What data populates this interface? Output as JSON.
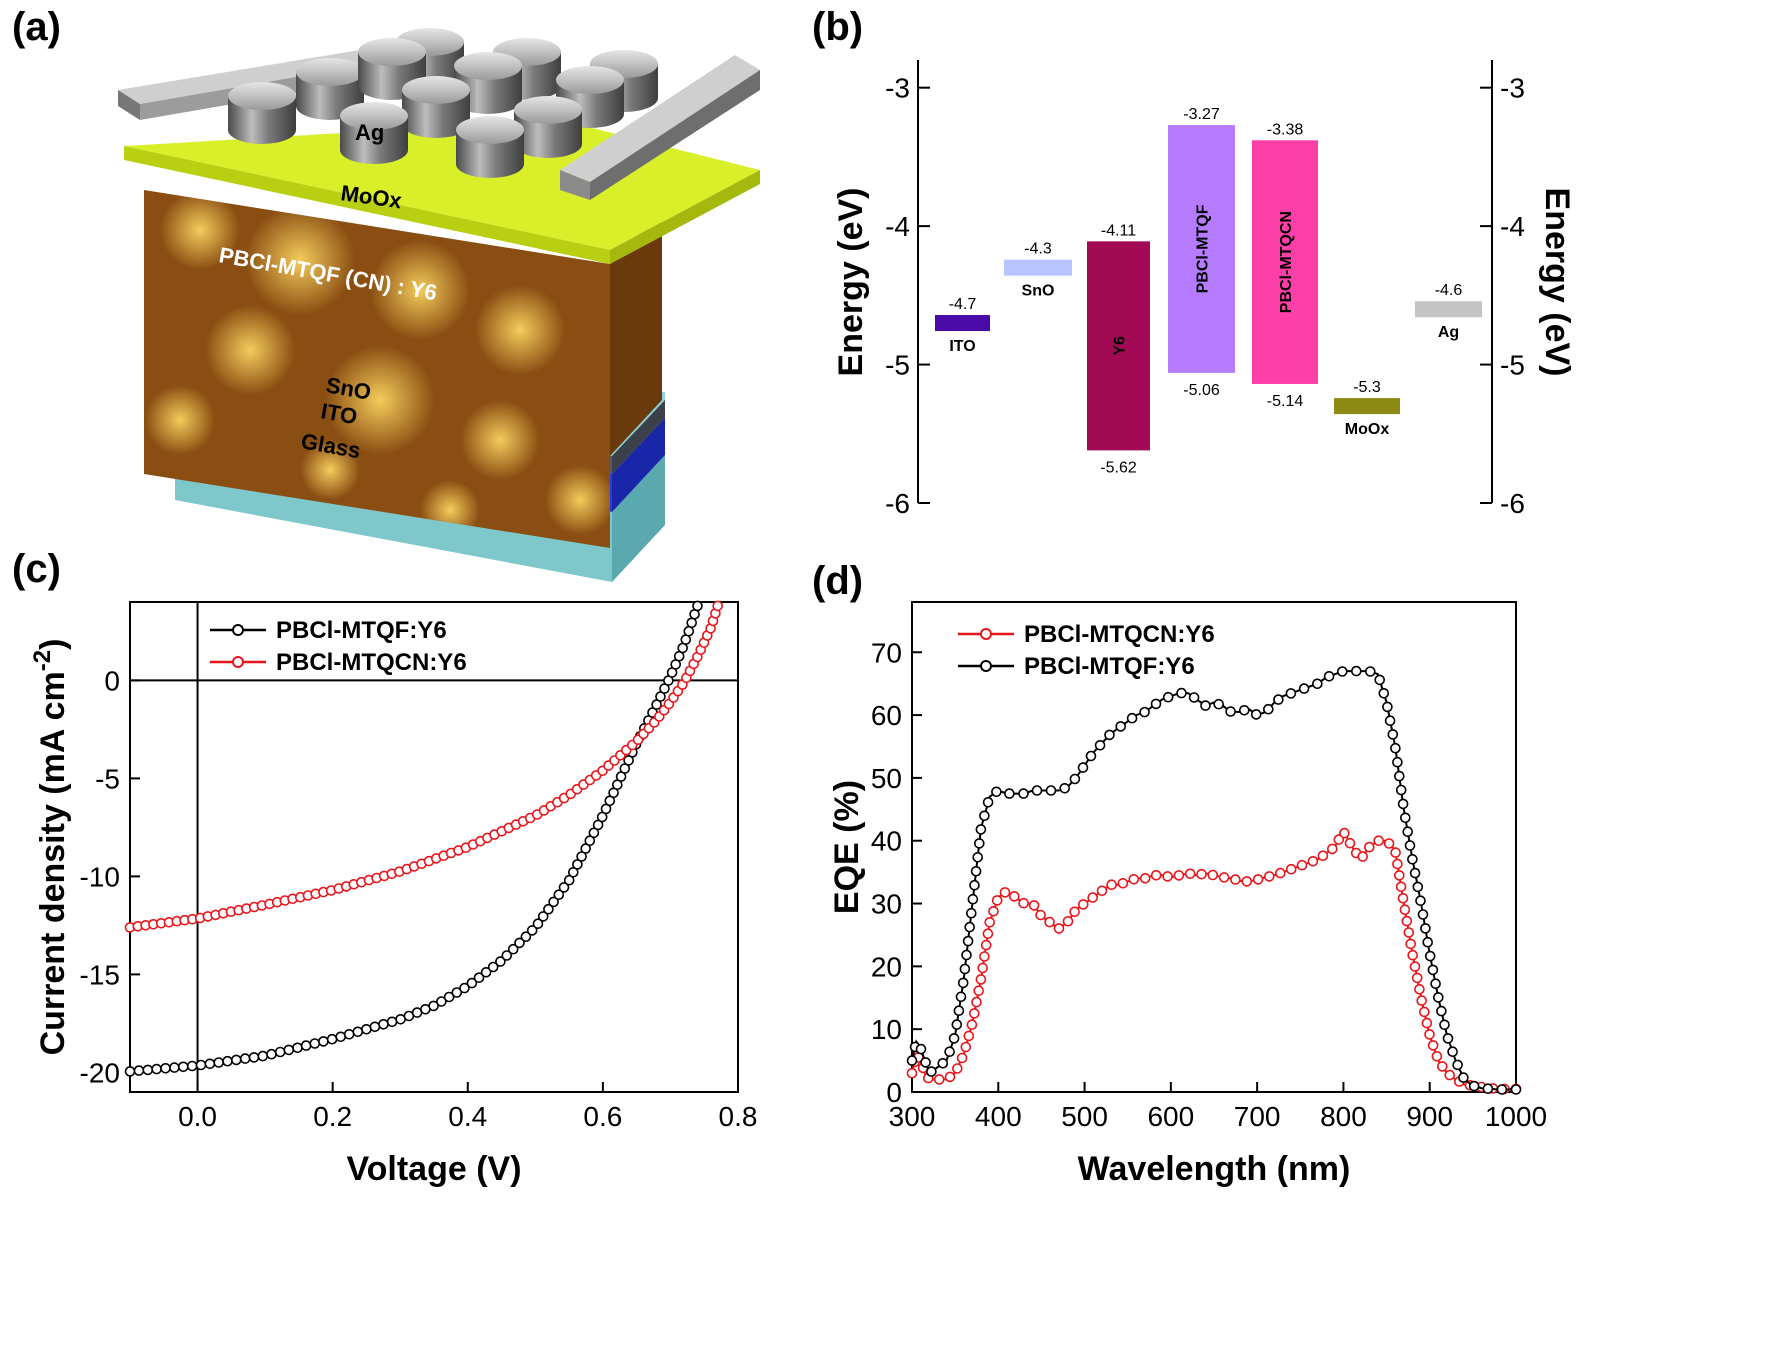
{
  "panels": {
    "a": "(a)",
    "b": "(b)",
    "c": "(c)",
    "d": "(d)"
  },
  "schematic": {
    "layers": [
      "Ag",
      "MoOx",
      "PBCl-MTQF (CN) : Y6",
      "SnO",
      "ITO",
      "Glass"
    ],
    "colors": {
      "glass": "#7ec8cc",
      "ito": "#2a3be0",
      "sno": "#555a66",
      "active": "#a8681a",
      "moox": "#d9ef2a",
      "ag": "#8a8a8a"
    }
  },
  "chart_data": [
    {
      "id": "b",
      "type": "bar",
      "ylabel": "Energy (eV)",
      "ylabel_right": "Energy (eV)",
      "ylim": [
        -6.0,
        -2.8
      ],
      "yticks": [
        -3,
        -4,
        -5,
        -6
      ],
      "levels": [
        {
          "name": "ITO",
          "top": -4.7,
          "bottom": -4.7,
          "top_label": "-4.7",
          "color": "#4a0aa8"
        },
        {
          "name": "SnO",
          "top": -4.3,
          "bottom": -4.3,
          "top_label": "-4.3",
          "color": "#b8c4ff"
        },
        {
          "name": "Y6",
          "top": -4.11,
          "bottom": -5.62,
          "top_label": "-4.11",
          "bottom_label": "-5.62",
          "color": "#a30a55"
        },
        {
          "name": "PBCl-MTQF",
          "top": -3.27,
          "bottom": -5.06,
          "top_label": "-3.27",
          "bottom_label": "-5.06",
          "color": "#b77bff"
        },
        {
          "name": "PBCl-MTQCN",
          "top": -3.38,
          "bottom": -5.14,
          "top_label": "-3.38",
          "bottom_label": "-5.14",
          "color": "#ff3fa8"
        },
        {
          "name": "MoOx",
          "top": -5.3,
          "bottom": -5.3,
          "top_label": "-5.3",
          "color": "#8c8a12"
        },
        {
          "name": "Ag",
          "top": -4.6,
          "bottom": -4.6,
          "top_label": "-4.6",
          "color": "#c4c4c4"
        }
      ]
    },
    {
      "id": "c",
      "type": "line",
      "xlabel": "Voltage (V)",
      "ylabel": "Current density (mA cm",
      "ylabel_sup": "-2",
      "ylabel_end": ")",
      "xlim": [
        -0.1,
        0.8
      ],
      "ylim": [
        -21,
        4
      ],
      "xticks": [
        0.0,
        0.2,
        0.4,
        0.6,
        0.8
      ],
      "xtick_labels": [
        "0.0",
        "0.2",
        "0.4",
        "0.6",
        "0.8"
      ],
      "yticks": [
        0,
        -5,
        -10,
        -15,
        -20
      ],
      "ytick_labels": [
        "0",
        "-5",
        "-10",
        "-15",
        "-20"
      ],
      "series": [
        {
          "name": "PBCl-MTQF:Y6",
          "color": "#000000",
          "x": [
            -0.1,
            0.0,
            0.1,
            0.2,
            0.3,
            0.35,
            0.4,
            0.45,
            0.5,
            0.55,
            0.6,
            0.65,
            0.68,
            0.7,
            0.72,
            0.74
          ],
          "y": [
            -19.95,
            -19.65,
            -19.15,
            -18.3,
            -17.3,
            -16.6,
            -15.6,
            -14.3,
            -12.6,
            -10.2,
            -6.9,
            -3.2,
            -1.2,
            0.2,
            1.8,
            3.8
          ]
        },
        {
          "name": "PBCl-MTQCN:Y6",
          "color": "#e8161b",
          "x": [
            -0.1,
            0.0,
            0.1,
            0.2,
            0.3,
            0.4,
            0.5,
            0.55,
            0.6,
            0.65,
            0.68,
            0.7,
            0.72,
            0.74,
            0.76,
            0.77
          ],
          "y": [
            -12.6,
            -12.15,
            -11.45,
            -10.7,
            -9.75,
            -8.5,
            -6.9,
            -5.85,
            -4.6,
            -3.1,
            -2.0,
            -1.1,
            -0.1,
            1.2,
            2.7,
            3.8
          ]
        }
      ]
    },
    {
      "id": "d",
      "type": "line",
      "xlabel": "Wavelength (nm)",
      "ylabel": "EQE (%)",
      "xlim": [
        300,
        1000
      ],
      "ylim": [
        0,
        78
      ],
      "xticks": [
        300,
        400,
        500,
        600,
        700,
        800,
        900,
        1000
      ],
      "yticks": [
        0,
        10,
        20,
        30,
        40,
        50,
        60,
        70
      ],
      "series": [
        {
          "name": "PBCl-MTQCN:Y6",
          "color": "#e8161b",
          "x": [
            300,
            305,
            310,
            315,
            320,
            330,
            340,
            350,
            360,
            370,
            380,
            390,
            400,
            410,
            420,
            430,
            440,
            450,
            460,
            470,
            480,
            490,
            500,
            510,
            520,
            530,
            540,
            550,
            560,
            570,
            580,
            590,
            600,
            610,
            620,
            630,
            640,
            650,
            660,
            670,
            680,
            690,
            700,
            710,
            720,
            730,
            740,
            750,
            760,
            770,
            780,
            790,
            800,
            810,
            820,
            830,
            840,
            850,
            860,
            870,
            880,
            890,
            900,
            910,
            920,
            930,
            940,
            950,
            960,
            970,
            980,
            990,
            1000
          ],
          "y": [
            3,
            6,
            5,
            3,
            2,
            2,
            2,
            3,
            6,
            11,
            18,
            27,
            31,
            32,
            31,
            30,
            30,
            28,
            27,
            26,
            27,
            29,
            30,
            31,
            32,
            33,
            33,
            33.5,
            34,
            34,
            34.5,
            34.5,
            34.2,
            34.5,
            34.8,
            34.5,
            34.8,
            34.5,
            34.2,
            34,
            33.6,
            33.5,
            33.8,
            34.2,
            34.5,
            35,
            35.5,
            36,
            36.5,
            37,
            38,
            39,
            41.5,
            39,
            37,
            39,
            40,
            40,
            38.5,
            30,
            22,
            15,
            9,
            5,
            3,
            2,
            1.2,
            1,
            0.8,
            0.6,
            0.5,
            0.5,
            0.5
          ]
        },
        {
          "name": "PBCl-MTQF:Y6",
          "color": "#000000",
          "x": [
            300,
            305,
            310,
            315,
            320,
            330,
            340,
            350,
            360,
            370,
            380,
            390,
            400,
            410,
            420,
            430,
            440,
            450,
            460,
            470,
            480,
            490,
            500,
            510,
            520,
            530,
            540,
            550,
            560,
            570,
            580,
            590,
            600,
            610,
            620,
            630,
            640,
            650,
            660,
            670,
            680,
            690,
            700,
            710,
            720,
            730,
            740,
            750,
            760,
            770,
            780,
            790,
            800,
            810,
            820,
            830,
            840,
            850,
            860,
            870,
            880,
            890,
            900,
            910,
            920,
            930,
            940,
            950,
            960,
            970,
            980,
            990,
            1000
          ],
          "y": [
            5,
            8,
            7,
            5,
            3,
            4,
            5,
            9,
            18,
            30,
            42,
            47,
            48,
            47.5,
            47.5,
            47.5,
            48,
            48,
            48,
            48,
            48.5,
            50,
            52,
            54,
            55.5,
            57,
            58,
            59,
            60,
            60.5,
            61.5,
            62.5,
            63,
            63.5,
            63.5,
            62.5,
            61.5,
            62,
            61.5,
            60.5,
            60.5,
            61,
            60,
            60.5,
            62,
            63,
            63.5,
            64,
            64.5,
            65,
            66,
            66.5,
            67,
            67,
            67,
            67,
            66.5,
            62,
            55,
            45,
            37,
            30,
            22,
            15,
            9,
            5,
            2,
            1,
            0.6,
            0.5,
            0.4,
            0.4,
            0.4
          ]
        }
      ]
    }
  ]
}
